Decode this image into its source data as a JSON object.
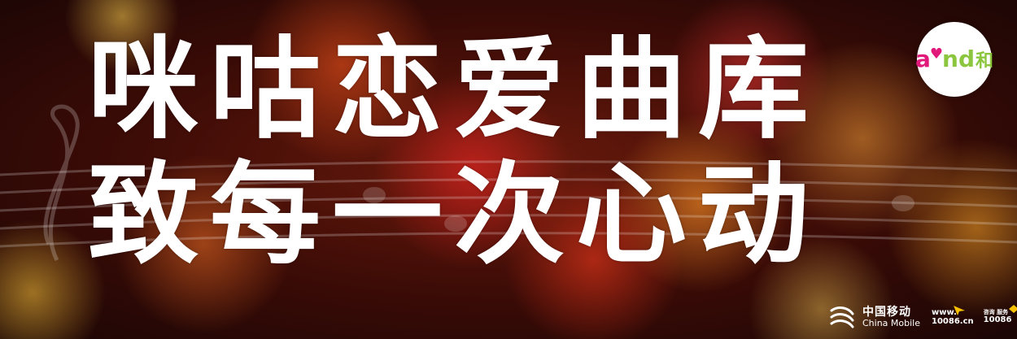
{
  "headline": {
    "line1": "咪咕恋爱曲库",
    "line2": "致每一次心动"
  },
  "and_logo": {
    "a": "a",
    "nd": "nd",
    "he": "和"
  },
  "footer": {
    "brand_cn": "中国移动",
    "brand_en": "China Mobile",
    "web_top": "www.",
    "web_bottom": "10086.cn",
    "hotline_top": "咨询 服务",
    "hotline_number": "10086"
  },
  "colors": {
    "headline": "#ffffff",
    "and_pink": "#e0197a",
    "and_green": "#8cc63f",
    "accent_yellow": "#f7c000"
  },
  "icons": [
    "music-staff-decoration",
    "and-heart-icon",
    "china-mobile-logo-icon",
    "web-arrow-icon",
    "phone-icon"
  ]
}
